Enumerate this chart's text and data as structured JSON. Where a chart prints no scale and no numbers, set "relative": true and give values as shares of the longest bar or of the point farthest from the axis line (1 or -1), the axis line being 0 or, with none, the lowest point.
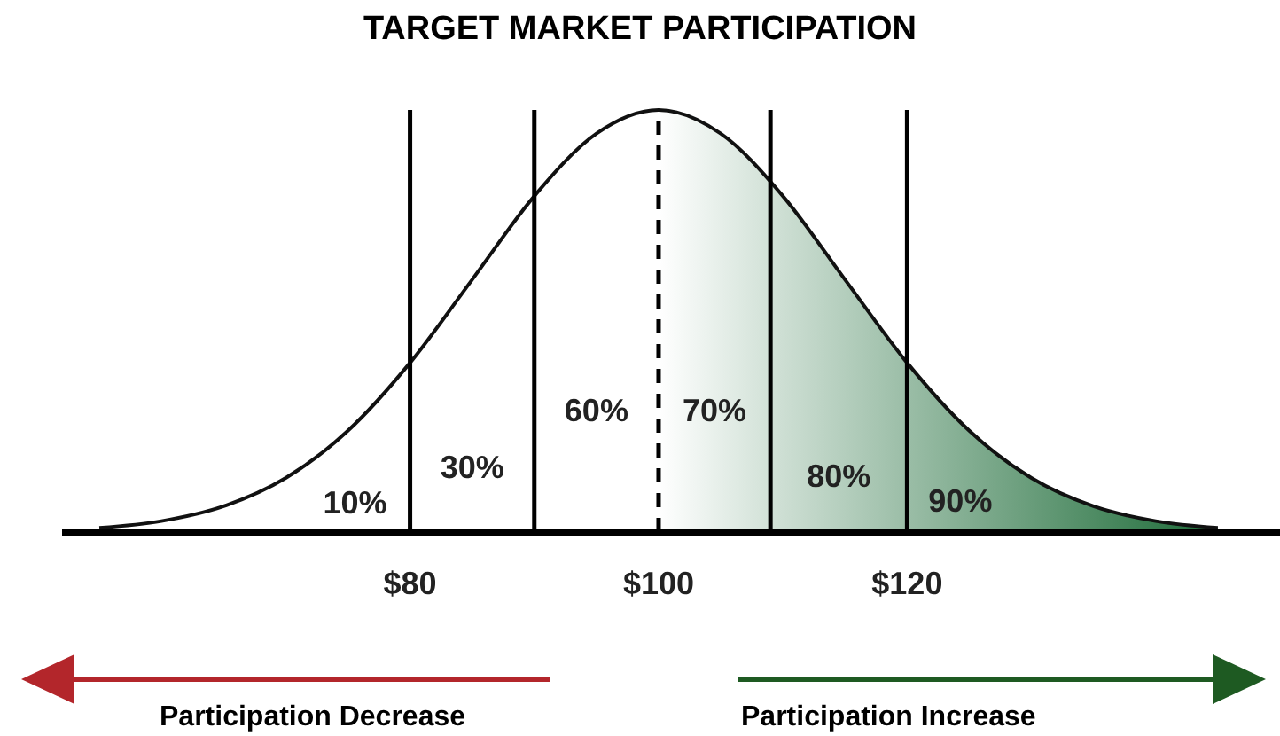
{
  "chart_data": {
    "type": "area",
    "title": "TARGET MARKET PARTICIPATION",
    "relative": true,
    "x": [
      55,
      60,
      65,
      70,
      75,
      80,
      85,
      90,
      95,
      100,
      105,
      110,
      115,
      120,
      125,
      130,
      135,
      140,
      145
    ],
    "series": [
      {
        "color": "#1d6b38",
        "values": [
          0.01,
          0.026,
          0.061,
          0.128,
          0.24,
          0.401,
          0.598,
          0.796,
          0.944,
          1,
          0.944,
          0.796,
          0.598,
          0.401,
          0.24,
          0.128,
          0.061,
          0.026,
          0.01
        ]
      }
    ],
    "xlim": [
      52,
      150
    ],
    "xticks": [
      {
        "value": 80,
        "label": "$80"
      },
      {
        "value": 100,
        "label": "$100"
      },
      {
        "value": 120,
        "label": "$120"
      }
    ],
    "ref_lines": [
      {
        "axis": "x",
        "value": 80
      },
      {
        "axis": "x",
        "value": 90
      },
      {
        "axis": "x",
        "value": 100,
        "line_style": "dashed"
      },
      {
        "axis": "x",
        "value": 109
      },
      {
        "axis": "x",
        "value": 120
      }
    ],
    "annotations": [
      "10%",
      "30%",
      "60%",
      "70%",
      "80%",
      "90%",
      "Participation Decrease",
      "Participation Increase"
    ]
  }
}
